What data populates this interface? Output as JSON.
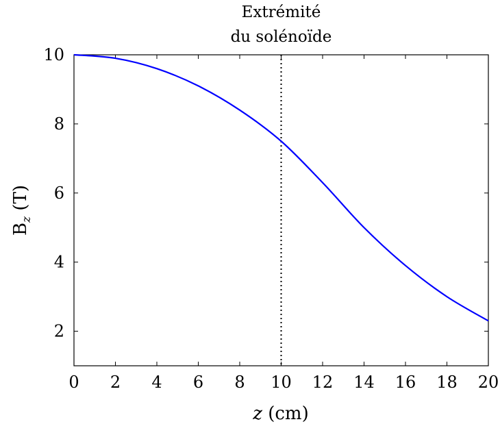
{
  "chart_data": {
    "type": "line",
    "title": "",
    "xlabel": "z (cm)",
    "ylabel": "Bz (T)",
    "xlim": [
      0,
      20
    ],
    "ylim": [
      1,
      10
    ],
    "xticks": [
      0,
      2,
      4,
      6,
      8,
      10,
      12,
      14,
      16,
      18,
      20
    ],
    "yticks": [
      2,
      4,
      6,
      8,
      10
    ],
    "grid": false,
    "series": [
      {
        "color": "#0000ff",
        "x": [
          0,
          2,
          4,
          6,
          8,
          10,
          12,
          14,
          16,
          18,
          20
        ],
        "y": [
          10,
          9.9,
          9.6,
          9.1,
          8.4,
          7.5,
          6.3,
          5.0,
          3.9,
          3.0,
          2.3
        ]
      }
    ],
    "annotations": [
      {
        "type": "vline",
        "x": 10,
        "style": "dotted",
        "color": "#000000",
        "label_lines": [
          "Extrémité",
          "du solénoïde"
        ]
      }
    ]
  }
}
